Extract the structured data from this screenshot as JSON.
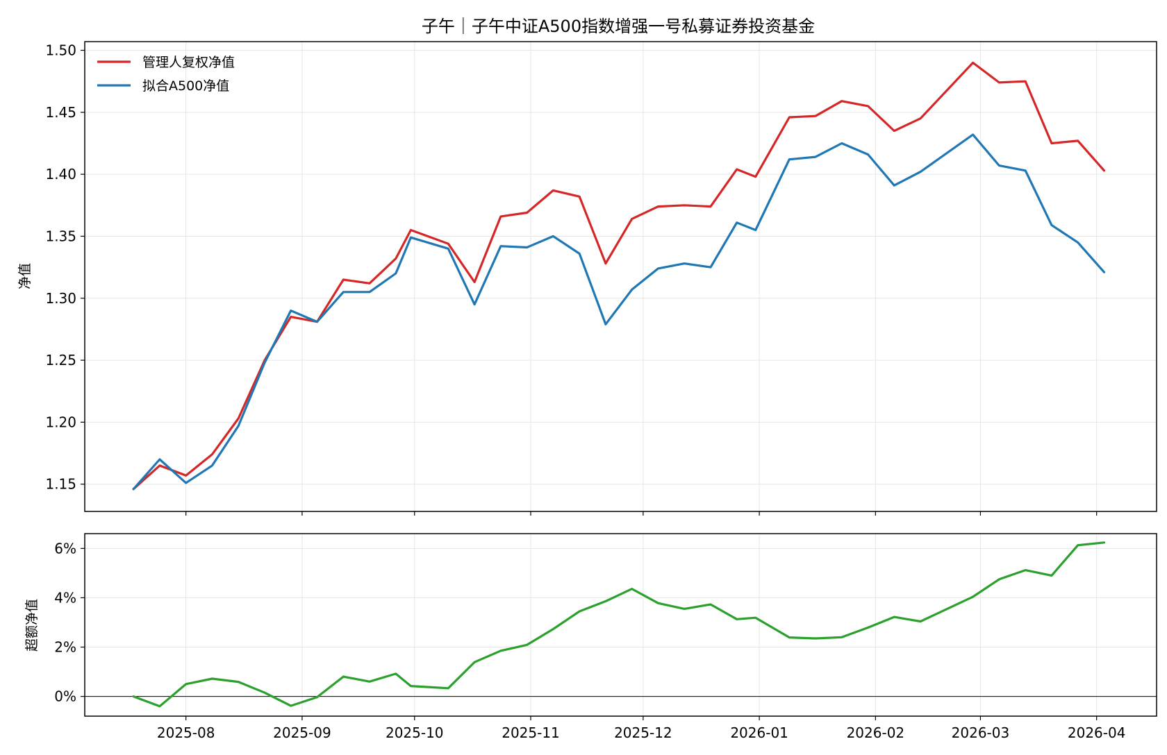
{
  "chart_data": [
    {
      "type": "line",
      "title": "子午｜子午中证A500指数增强一号私募证券投资基金",
      "xlabel": "",
      "ylabel": "净值",
      "ylim": [
        1.128,
        1.507
      ],
      "yticks": [
        "1.15",
        "1.20",
        "1.25",
        "1.30",
        "1.35",
        "1.40",
        "1.45",
        "1.50"
      ],
      "ytick_values": [
        1.15,
        1.2,
        1.25,
        1.3,
        1.35,
        1.4,
        1.45,
        1.5
      ],
      "grid": true,
      "legend_position": "top-left",
      "x": [
        "2025-07-18",
        "2025-07-25",
        "2025-08-01",
        "2025-08-08",
        "2025-08-15",
        "2025-08-22",
        "2025-08-29",
        "2025-09-05",
        "2025-09-12",
        "2025-09-19",
        "2025-09-26",
        "2025-09-30",
        "2025-10-10",
        "2025-10-17",
        "2025-10-24",
        "2025-10-31",
        "2025-11-07",
        "2025-11-14",
        "2025-11-21",
        "2025-11-28",
        "2025-12-05",
        "2025-12-12",
        "2025-12-19",
        "2025-12-26",
        "2025-12-31",
        "2026-01-09",
        "2026-01-16",
        "2026-01-23",
        "2026-01-30",
        "2026-02-06",
        "2026-02-13",
        "2026-02-27",
        "2026-03-06",
        "2026-03-13",
        "2026-03-20",
        "2026-03-27",
        "2026-04-03"
      ],
      "series": [
        {
          "name": "管理人复权净值",
          "color": "#d62728",
          "values": [
            1.146,
            1.165,
            1.157,
            1.174,
            1.203,
            1.25,
            1.285,
            1.281,
            1.315,
            1.312,
            1.332,
            1.355,
            1.344,
            1.313,
            1.366,
            1.369,
            1.387,
            1.382,
            1.328,
            1.364,
            1.374,
            1.375,
            1.374,
            1.404,
            1.398,
            1.446,
            1.447,
            1.459,
            1.455,
            1.435,
            1.445,
            1.49,
            1.474,
            1.475,
            1.425,
            1.427,
            1.403
          ]
        },
        {
          "name": "拟合A500净值",
          "color": "#1f77b4",
          "values": [
            1.146,
            1.17,
            1.151,
            1.165,
            1.197,
            1.248,
            1.29,
            1.281,
            1.305,
            1.305,
            1.32,
            1.349,
            1.34,
            1.295,
            1.342,
            1.341,
            1.35,
            1.336,
            1.279,
            1.307,
            1.324,
            1.328,
            1.325,
            1.361,
            1.355,
            1.412,
            1.414,
            1.425,
            1.416,
            1.391,
            1.402,
            1.432,
            1.407,
            1.403,
            1.359,
            1.345,
            1.321
          ]
        }
      ]
    },
    {
      "type": "line",
      "xlabel": "",
      "ylabel": "超额净值",
      "ylim": [
        -0.8,
        6.6
      ],
      "yticks": [
        "0%",
        "2%",
        "4%",
        "6%"
      ],
      "ytick_values": [
        0,
        2,
        4,
        6
      ],
      "grid": true,
      "reference_line": 0,
      "x_tick_labels": [
        "2025-08",
        "2025-09",
        "2025-10",
        "2025-11",
        "2025-12",
        "2026-01",
        "2026-02",
        "2026-03",
        "2026-04"
      ],
      "x_tick_dates": [
        "2025-08-01",
        "2025-09-01",
        "2025-10-01",
        "2025-11-01",
        "2025-12-01",
        "2026-01-01",
        "2026-02-01",
        "2026-03-01",
        "2026-04-01"
      ],
      "x": [
        "2025-07-18",
        "2025-07-25",
        "2025-08-01",
        "2025-08-08",
        "2025-08-15",
        "2025-08-22",
        "2025-08-29",
        "2025-09-05",
        "2025-09-12",
        "2025-09-19",
        "2025-09-26",
        "2025-09-30",
        "2025-10-10",
        "2025-10-17",
        "2025-10-24",
        "2025-10-31",
        "2025-11-07",
        "2025-11-14",
        "2025-11-21",
        "2025-11-28",
        "2025-12-05",
        "2025-12-12",
        "2025-12-19",
        "2025-12-26",
        "2025-12-31",
        "2026-01-09",
        "2026-01-16",
        "2026-01-23",
        "2026-01-30",
        "2026-02-06",
        "2026-02-13",
        "2026-02-27",
        "2026-03-06",
        "2026-03-13",
        "2026-03-20",
        "2026-03-27",
        "2026-04-03"
      ],
      "series": [
        {
          "color": "#2ca02c",
          "values": [
            0.0,
            -0.4,
            0.5,
            0.72,
            0.59,
            0.15,
            -0.38,
            -0.03,
            0.8,
            0.6,
            0.92,
            0.42,
            0.33,
            1.39,
            1.85,
            2.09,
            2.73,
            3.45,
            3.86,
            4.36,
            3.78,
            3.55,
            3.73,
            3.13,
            3.19,
            2.39,
            2.35,
            2.4,
            2.79,
            3.22,
            3.04,
            4.04,
            4.75,
            5.12,
            4.9,
            6.13,
            6.24
          ]
        }
      ]
    }
  ]
}
